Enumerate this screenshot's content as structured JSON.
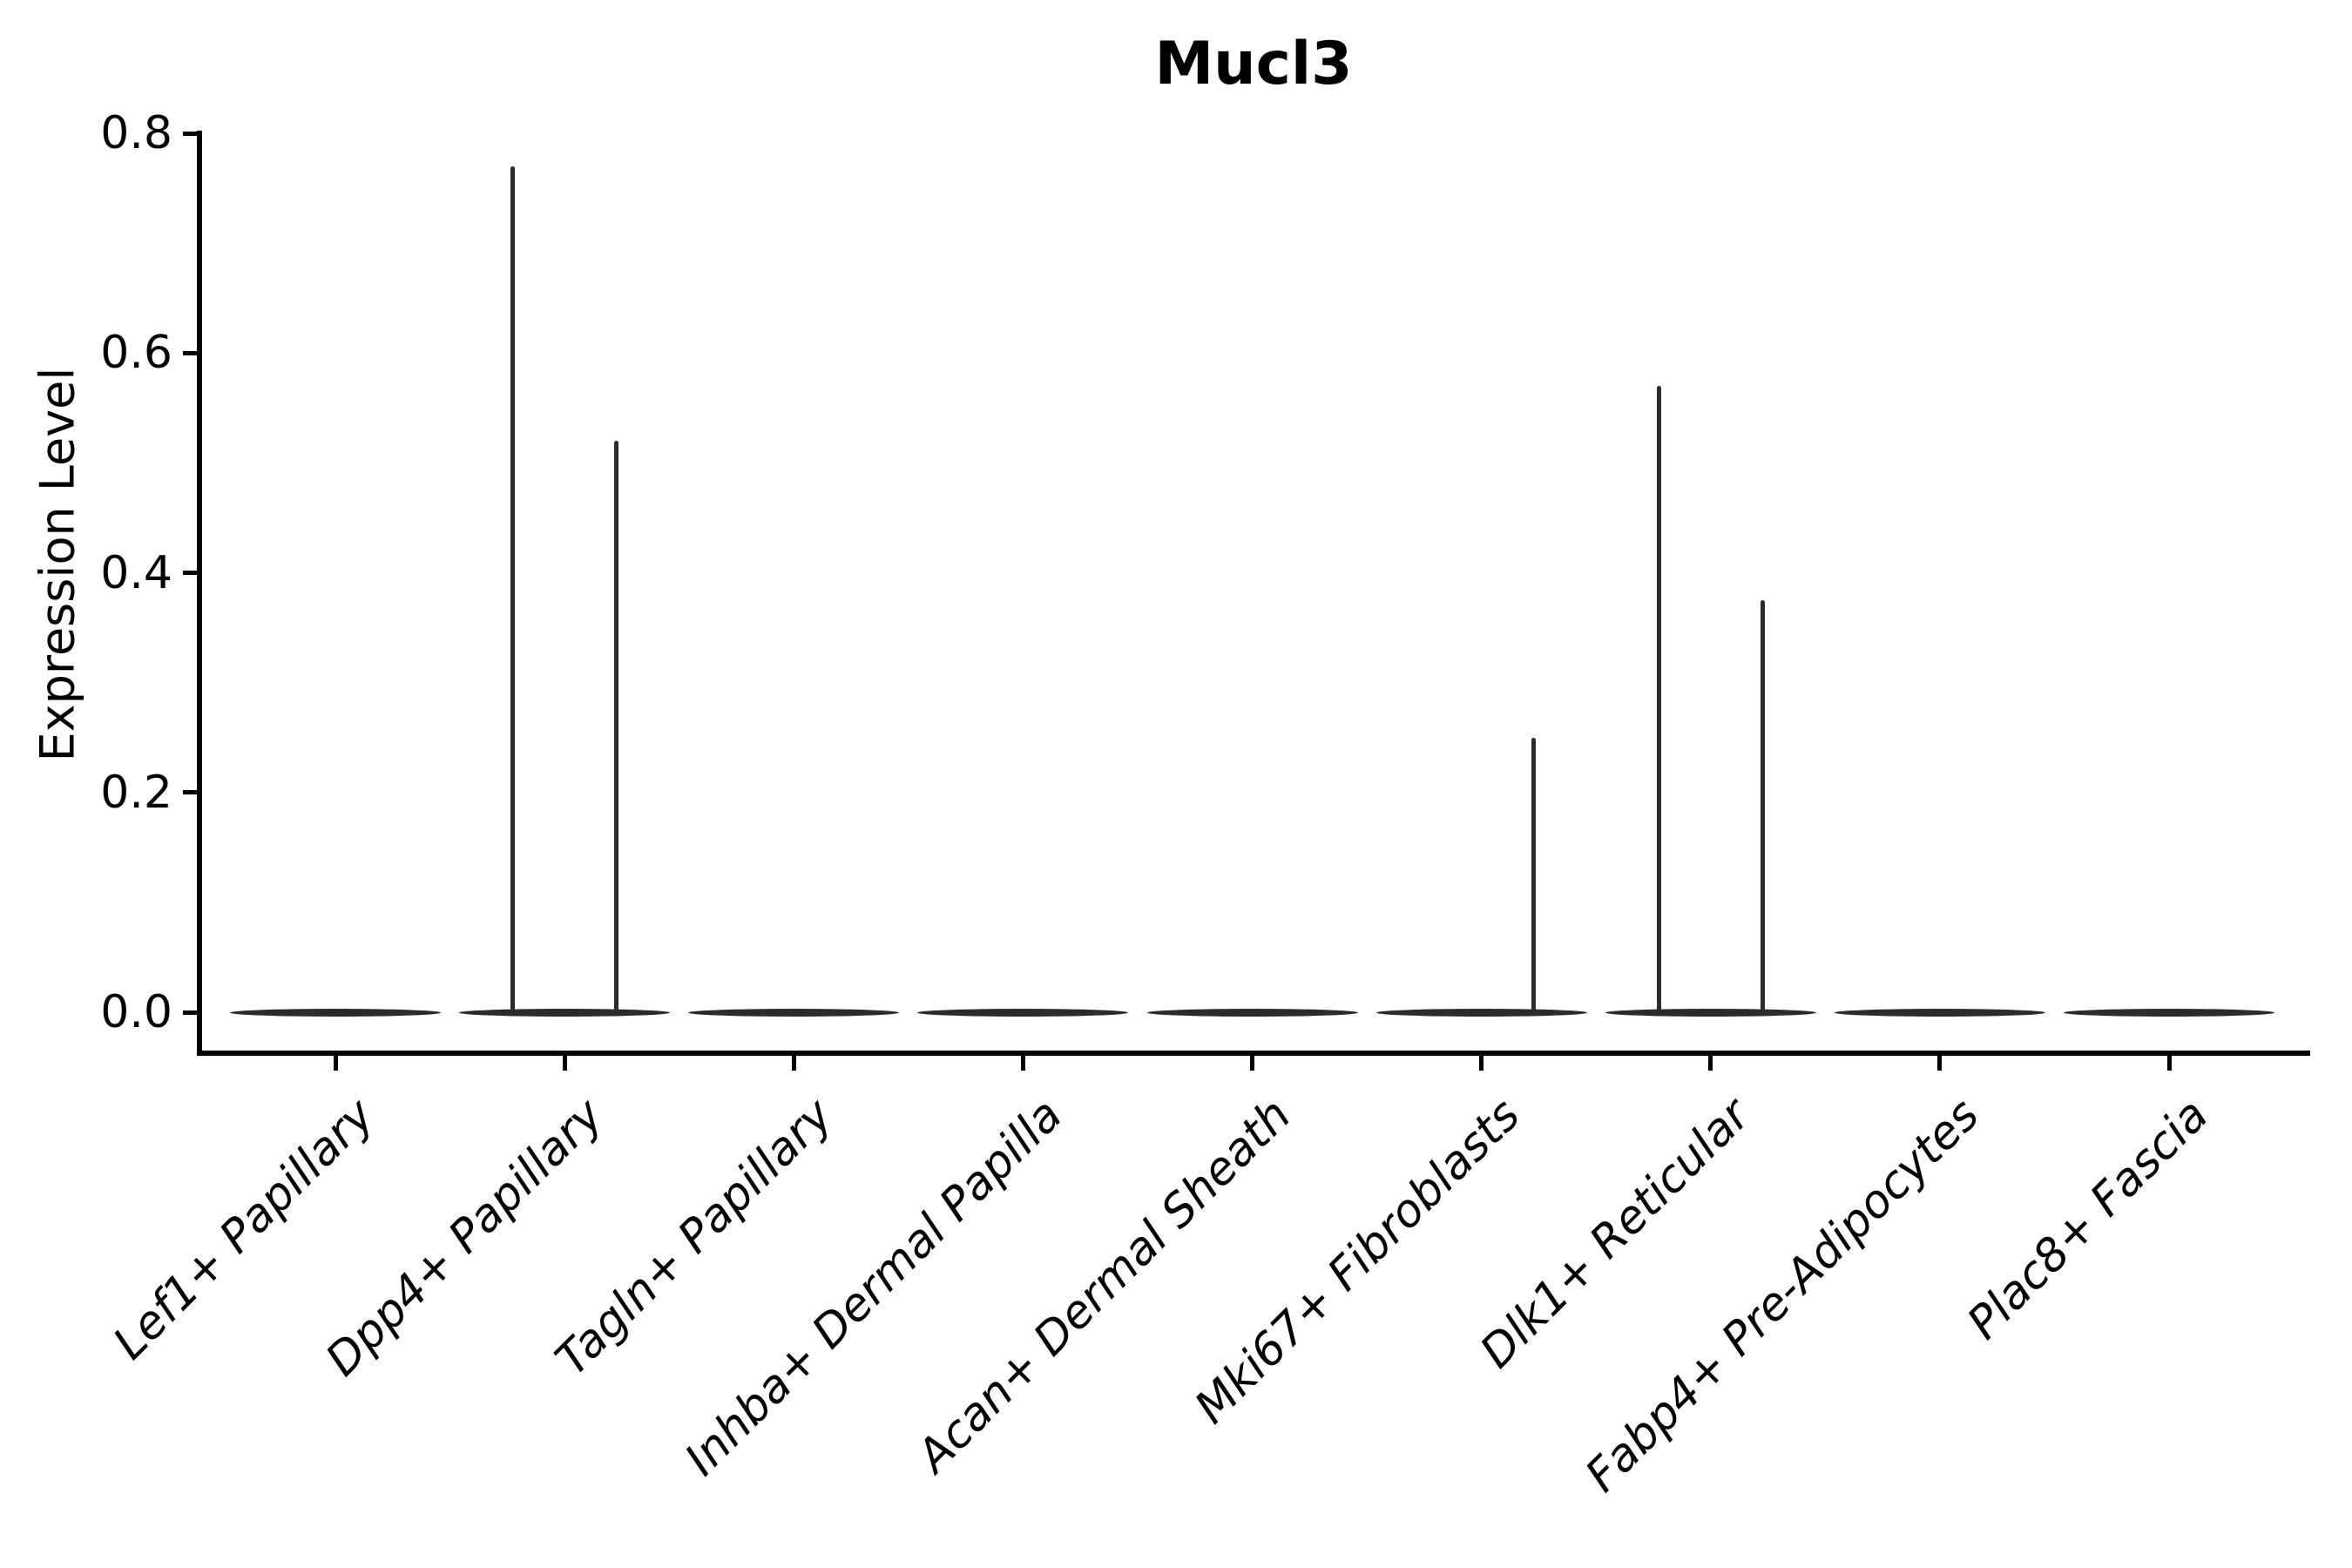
{
  "figure": {
    "title": "Mucl3",
    "background_color": "#ffffff",
    "ink_color": "#000000",
    "violin_color": "#2b2b2b"
  },
  "chart_data": {
    "type": "violin",
    "title": "Mucl3",
    "xlabel": "",
    "ylabel": "Expression Level",
    "ylim": [
      0,
      0.8
    ],
    "y_ticks": [
      0.0,
      0.2,
      0.4,
      0.6,
      0.8
    ],
    "y_tick_labels": [
      "0.0",
      "0.2",
      "0.4",
      "0.6",
      "0.8"
    ],
    "grid": false,
    "legend_position": "none",
    "x_tick_rotation": 45,
    "categories": [
      "Lef1+ Papillary",
      "Dpp4+ Papillary",
      "Tagln+ Papillary",
      "Inhba+ Dermal Papilla",
      "Acan+ Dermal Sheath",
      "Mki67+ Fibroblasts",
      "Dlk1+ Reticular",
      "Fabp4+ Pre-Adipocytes",
      "Plac8+ Fascia"
    ],
    "series": [
      {
        "category": "Lef1+ Papillary",
        "base_value": 0.0,
        "spikes": []
      },
      {
        "category": "Dpp4+ Papillary",
        "base_value": 0.0,
        "spikes": [
          {
            "value": 0.77,
            "side": "left"
          },
          {
            "value": 0.52,
            "side": "right"
          }
        ]
      },
      {
        "category": "Tagln+ Papillary",
        "base_value": 0.0,
        "spikes": []
      },
      {
        "category": "Inhba+ Dermal Papilla",
        "base_value": 0.0,
        "spikes": []
      },
      {
        "category": "Acan+ Dermal Sheath",
        "base_value": 0.0,
        "spikes": []
      },
      {
        "category": "Mki67+ Fibroblasts",
        "base_value": 0.0,
        "spikes": [
          {
            "value": 0.25,
            "side": "right"
          }
        ]
      },
      {
        "category": "Dlk1+ Reticular",
        "base_value": 0.0,
        "spikes": [
          {
            "value": 0.57,
            "side": "left"
          },
          {
            "value": 0.375,
            "side": "right"
          }
        ]
      },
      {
        "category": "Fabp4+ Pre-Adipocytes",
        "base_value": 0.0,
        "spikes": []
      },
      {
        "category": "Plac8+ Fascia",
        "base_value": 0.0,
        "spikes": []
      }
    ],
    "spike_offset_fraction": 0.226
  }
}
